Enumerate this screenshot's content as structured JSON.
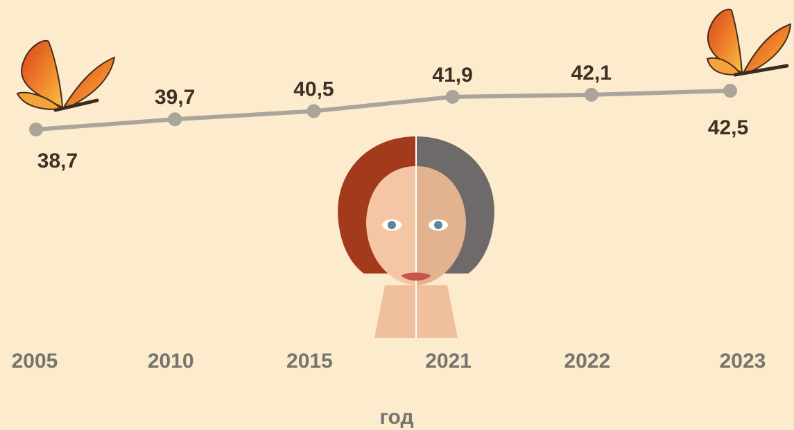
{
  "chart_data": {
    "type": "line",
    "categories": [
      "2005",
      "2010",
      "2015",
      "2021",
      "2022",
      "2023"
    ],
    "values": [
      38.7,
      39.7,
      40.5,
      41.9,
      42.1,
      42.5
    ],
    "value_labels": [
      "38,7",
      "39,7",
      "40,5",
      "41,9",
      "42,1",
      "42,5"
    ],
    "x_label": "год",
    "color": "#aaa59b"
  }
}
